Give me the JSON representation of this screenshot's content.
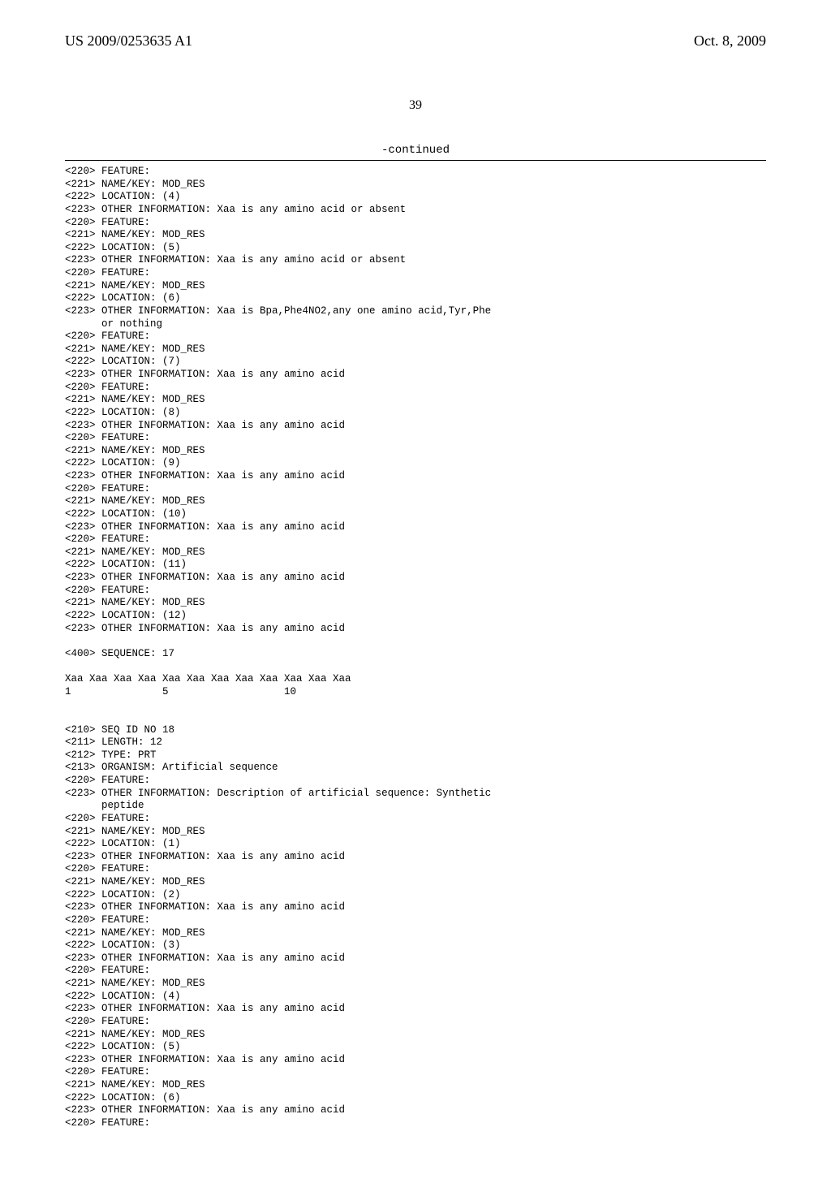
{
  "header": {
    "left": "US 2009/0253635 A1",
    "right": "Oct. 8, 2009"
  },
  "page_number": "39",
  "continued_label": "-continued",
  "seq17": {
    "features": [
      {
        "location": "(4)",
        "other": "Xaa is any amino acid or absent"
      },
      {
        "location": "(5)",
        "other": "Xaa is any amino acid or absent"
      },
      {
        "location": "(6)",
        "other": "Xaa is Bpa,Phe4NO2,any one amino acid,Tyr,Phe",
        "other2": "or nothing"
      },
      {
        "location": "(7)",
        "other": "Xaa is any amino acid"
      },
      {
        "location": "(8)",
        "other": "Xaa is any amino acid"
      },
      {
        "location": "(9)",
        "other": "Xaa is any amino acid"
      },
      {
        "location": "(10)",
        "other": "Xaa is any amino acid"
      },
      {
        "location": "(11)",
        "other": "Xaa is any amino acid"
      },
      {
        "location": "(12)",
        "other": "Xaa is any amino acid"
      }
    ],
    "sequence_label": "<400> SEQUENCE: 17",
    "sequence_line": "Xaa Xaa Xaa Xaa Xaa Xaa Xaa Xaa Xaa Xaa Xaa Xaa",
    "number_line": "1               5                   10"
  },
  "seq18": {
    "id_line": "<210> SEQ ID NO 18",
    "length_line": "<211> LENGTH: 12",
    "type_line": "<212> TYPE: PRT",
    "organism_line": "<213> ORGANISM: Artificial sequence",
    "feature_line": "<220> FEATURE:",
    "other_info_line": "<223> OTHER INFORMATION: Description of artificial sequence: Synthetic",
    "other_info_line2": "      peptide",
    "features": [
      {
        "location": "(1)",
        "other": "Xaa is any amino acid"
      },
      {
        "location": "(2)",
        "other": "Xaa is any amino acid"
      },
      {
        "location": "(3)",
        "other": "Xaa is any amino acid"
      },
      {
        "location": "(4)",
        "other": "Xaa is any amino acid"
      },
      {
        "location": "(5)",
        "other": "Xaa is any amino acid"
      },
      {
        "location": "(6)",
        "other": "Xaa is any amino acid"
      }
    ],
    "trailing_feature_line": "<220> FEATURE:"
  },
  "labels": {
    "feature": "<220> FEATURE:",
    "namekey": "<221> NAME/KEY: MOD_RES",
    "location_prefix": "<222> LOCATION: ",
    "other_prefix": "<223> OTHER INFORMATION: ",
    "other_indent": "      "
  }
}
